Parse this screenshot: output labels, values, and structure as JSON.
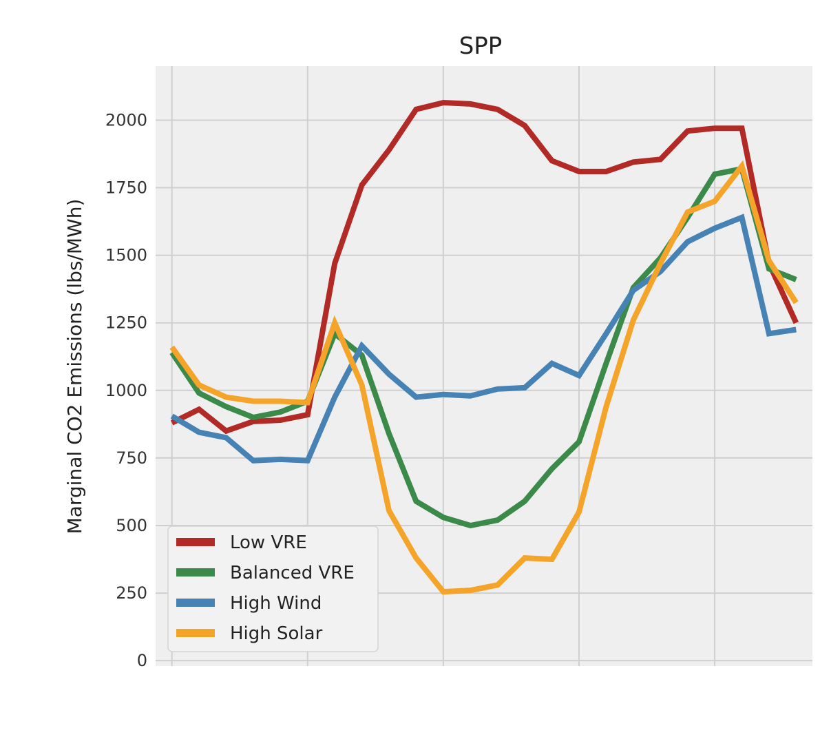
{
  "chart_data": {
    "type": "line",
    "title": "SPP",
    "xlabel": "",
    "ylabel": "Marginal CO2 Emissions (lbs/MWh)",
    "x": [
      0,
      1,
      2,
      3,
      4,
      5,
      6,
      7,
      8,
      9,
      10,
      11,
      12,
      13,
      14,
      15,
      16,
      17,
      18,
      19,
      20,
      21,
      22,
      23
    ],
    "xlim": [
      -0.6,
      23.6
    ],
    "ylim": [
      -20,
      2200
    ],
    "yticks": [
      0,
      250,
      500,
      750,
      1000,
      1250,
      1500,
      1750,
      2000
    ],
    "ytick_labels": [
      "0",
      "250",
      "500",
      "750",
      "1000",
      "1250",
      "1500",
      "1750",
      "2000"
    ],
    "x_grid": [
      0,
      5,
      10,
      15,
      20
    ],
    "grid": true,
    "legend_position": "lower-left",
    "series": [
      {
        "name": "Low VRE",
        "color": "#b22a26",
        "values": [
          880,
          930,
          850,
          885,
          890,
          910,
          1470,
          1760,
          1890,
          2040,
          2065,
          2060,
          2040,
          1980,
          1850,
          1810,
          1810,
          1845,
          1855,
          1960,
          1970,
          1970,
          1470,
          1250
        ]
      },
      {
        "name": "Balanced VRE",
        "color": "#3b8a4a",
        "values": [
          1140,
          990,
          940,
          900,
          920,
          960,
          1210,
          1130,
          840,
          590,
          530,
          500,
          520,
          590,
          710,
          810,
          1100,
          1380,
          1490,
          1640,
          1800,
          1820,
          1450,
          1410
        ]
      },
      {
        "name": "High Wind",
        "color": "#4682b4",
        "values": [
          905,
          845,
          825,
          740,
          745,
          740,
          975,
          1165,
          1060,
          975,
          985,
          980,
          1005,
          1010,
          1100,
          1055,
          1210,
          1370,
          1440,
          1550,
          1600,
          1640,
          1210,
          1225
        ]
      },
      {
        "name": "High Solar",
        "color": "#f5a42a",
        "values": [
          1160,
          1020,
          975,
          960,
          960,
          955,
          1250,
          1020,
          555,
          380,
          255,
          260,
          280,
          380,
          375,
          550,
          940,
          1260,
          1470,
          1660,
          1700,
          1830,
          1480,
          1325
        ]
      }
    ]
  }
}
